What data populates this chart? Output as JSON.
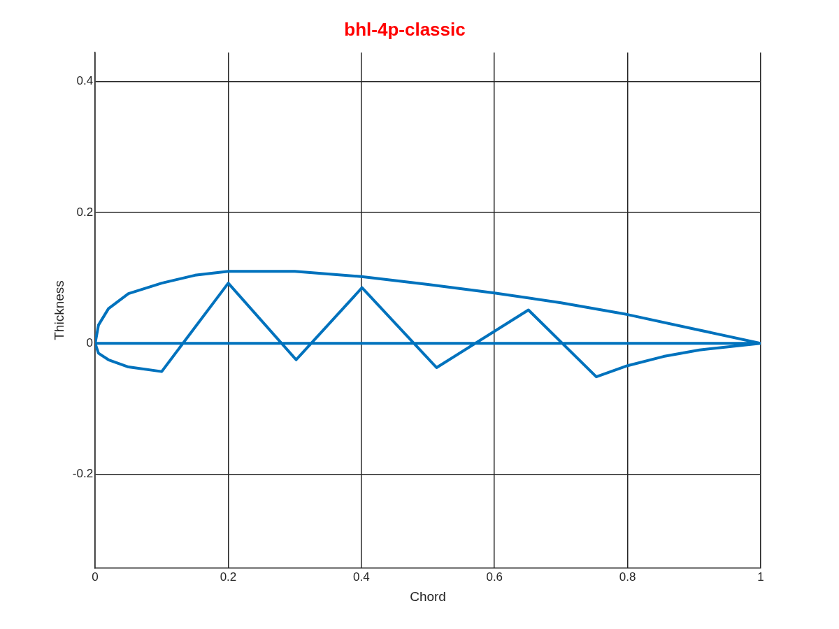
{
  "chart_data": {
    "type": "line",
    "title": "bhl-4p-classic",
    "xlabel": "Chord",
    "ylabel": "Thickness",
    "xlim": [
      0,
      1
    ],
    "ylim": [
      -0.343,
      0.444
    ],
    "xticks": [
      0,
      0.2,
      0.4,
      0.6,
      0.8,
      1
    ],
    "yticks": [
      -0.2,
      0,
      0.2,
      0.4
    ],
    "grid": true,
    "marker": "none",
    "line_style": "solid",
    "series": [
      {
        "color": "#0072bd",
        "x": [
          1,
          0.9,
          0.8,
          0.7,
          0.6,
          0.5,
          0.4,
          0.3,
          0.2,
          0.15,
          0.1,
          0.05,
          0.02,
          0.005,
          0,
          0.005,
          0.02,
          0.05,
          0.1,
          0.2,
          0.302,
          0.401,
          0.513,
          0.651,
          0.753,
          0.8,
          0.854,
          0.908,
          1,
          0
        ],
        "values": [
          0,
          0.022,
          0.044,
          0.062,
          0.077,
          0.09,
          0.102,
          0.11,
          0.11,
          0.104,
          0.092,
          0.076,
          0.053,
          0.028,
          0,
          -0.015,
          -0.025,
          -0.036,
          -0.043,
          0.092,
          -0.025,
          0.085,
          -0.037,
          0.051,
          -0.051,
          -0.034,
          -0.02,
          -0.01,
          0,
          0
        ]
      }
    ]
  }
}
